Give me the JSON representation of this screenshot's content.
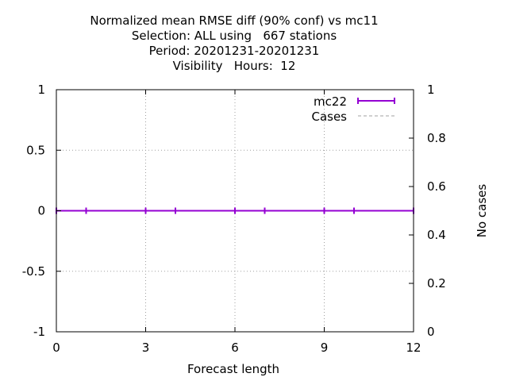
{
  "chart_data": {
    "type": "line",
    "title_lines": [
      "Normalized mean RMSE diff (90% conf) vs mc11",
      "Selection: ALL using   667 stations",
      "Period: 20201231-20201231",
      "Visibility   Hours:  12"
    ],
    "xlabel": "Forecast length",
    "ylabel": "",
    "y2label": "No cases",
    "xlim": [
      0,
      12
    ],
    "ylim": [
      -1,
      1
    ],
    "y2lim": [
      0,
      1
    ],
    "x_ticks": [
      0,
      3,
      6,
      9,
      12
    ],
    "y_ticks": [
      -1,
      -0.5,
      0,
      0.5,
      1
    ],
    "y_tick_labels": [
      "-1",
      "-0.5",
      "0",
      "0.5",
      "1"
    ],
    "y2_ticks": [
      0,
      0.2,
      0.4,
      0.6,
      0.8,
      1
    ],
    "grid": true,
    "legend_position": "top-right",
    "series": [
      {
        "name": "mc22",
        "color": "#9400d3",
        "style": "line-errorbars",
        "x": [
          0,
          1,
          3,
          4,
          6,
          7,
          9,
          10,
          12
        ],
        "y": [
          0,
          0,
          0,
          0,
          0,
          0,
          0,
          0,
          0
        ]
      },
      {
        "name": "Cases",
        "color": "#a0a0a0",
        "style": "dashed",
        "x": [],
        "y": []
      }
    ]
  }
}
